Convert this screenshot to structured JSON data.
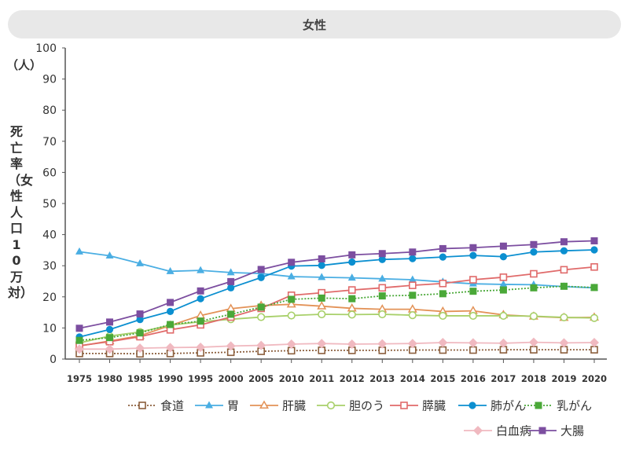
{
  "chart_data": {
    "type": "line",
    "title": "女性",
    "unit": "（人）",
    "ylabel": "死亡率（女性人口10万対）",
    "xlabel": "",
    "ylim": [
      0,
      100
    ],
    "yticks": [
      0,
      10,
      20,
      30,
      40,
      50,
      60,
      70,
      80,
      90,
      100
    ],
    "categories": [
      "1975",
      "1980",
      "1985",
      "1990",
      "1995",
      "2000",
      "2005",
      "2010",
      "2011",
      "2012",
      "2013",
      "2014",
      "2015",
      "2016",
      "2017",
      "2018",
      "2019",
      "2020"
    ],
    "series": [
      {
        "name": "食道",
        "color": "#8b5e3c",
        "marker": "square-open",
        "dash": "2,2",
        "values": [
          1.8,
          1.8,
          1.7,
          1.8,
          2.0,
          2.2,
          2.5,
          2.7,
          2.8,
          2.8,
          2.8,
          2.9,
          2.9,
          2.9,
          3.0,
          3.0,
          3.0,
          3.0
        ]
      },
      {
        "name": "胃",
        "color": "#4aaee3",
        "marker": "triangle",
        "dash": "",
        "values": [
          34.5,
          33.2,
          30.7,
          28.2,
          28.5,
          27.8,
          27.5,
          26.5,
          26.3,
          26.1,
          25.8,
          25.5,
          24.8,
          24.2,
          24.0,
          23.9,
          23.3,
          22.9
        ]
      },
      {
        "name": "肝臓",
        "color": "#e39257",
        "marker": "triangle-open",
        "dash": "",
        "values": [
          4.2,
          5.8,
          7.5,
          10.8,
          14.0,
          16.2,
          17.2,
          17.6,
          17.0,
          16.3,
          16.0,
          16.0,
          15.3,
          15.5,
          14.2,
          13.7,
          13.3,
          13.4
        ]
      },
      {
        "name": "胆のう",
        "color": "#a8d06a",
        "marker": "circle-open",
        "dash": "",
        "values": [
          5.2,
          7.4,
          8.7,
          10.9,
          12.0,
          12.8,
          13.5,
          14.0,
          14.4,
          14.3,
          14.4,
          14.1,
          13.9,
          13.9,
          13.9,
          13.8,
          13.4,
          13.2
        ]
      },
      {
        "name": "膵臓",
        "color": "#e06a6a",
        "marker": "square-open",
        "dash": "",
        "values": [
          4.3,
          5.6,
          7.2,
          9.4,
          11.0,
          13.5,
          16.3,
          20.5,
          21.3,
          22.2,
          22.9,
          23.7,
          24.3,
          25.5,
          26.3,
          27.4,
          28.7,
          29.6
        ]
      },
      {
        "name": "肺がん",
        "color": "#0b8fd0",
        "marker": "circle",
        "dash": "",
        "values": [
          7.1,
          9.5,
          12.7,
          15.3,
          19.4,
          22.9,
          26.2,
          29.9,
          30.1,
          31.2,
          32.0,
          32.3,
          32.8,
          33.3,
          32.9,
          34.4,
          34.8,
          35.1
        ]
      },
      {
        "name": "乳がん",
        "color": "#4aa838",
        "marker": "square",
        "dash": "2,2",
        "values": [
          6.0,
          6.9,
          8.4,
          11.1,
          12.2,
          14.4,
          16.7,
          19.2,
          19.6,
          19.4,
          20.3,
          20.5,
          21.0,
          21.8,
          22.2,
          22.9,
          23.4,
          23.0
        ]
      },
      {
        "name": "白血病",
        "color": "#f0b9c0",
        "marker": "diamond",
        "dash": "",
        "values": [
          3.2,
          3.2,
          3.5,
          3.7,
          3.8,
          4.2,
          4.4,
          4.8,
          5.0,
          4.8,
          4.9,
          5.0,
          5.3,
          5.2,
          5.1,
          5.4,
          5.2,
          5.3
        ]
      },
      {
        "name": "大腸",
        "color": "#7c4ea0",
        "marker": "square",
        "dash": "",
        "values": [
          9.9,
          11.9,
          14.5,
          18.2,
          21.9,
          24.9,
          28.8,
          31.1,
          32.2,
          33.5,
          33.9,
          34.4,
          35.5,
          35.8,
          36.3,
          36.8,
          37.7,
          38.0
        ]
      }
    ],
    "legend_placement": "bottom-right"
  }
}
